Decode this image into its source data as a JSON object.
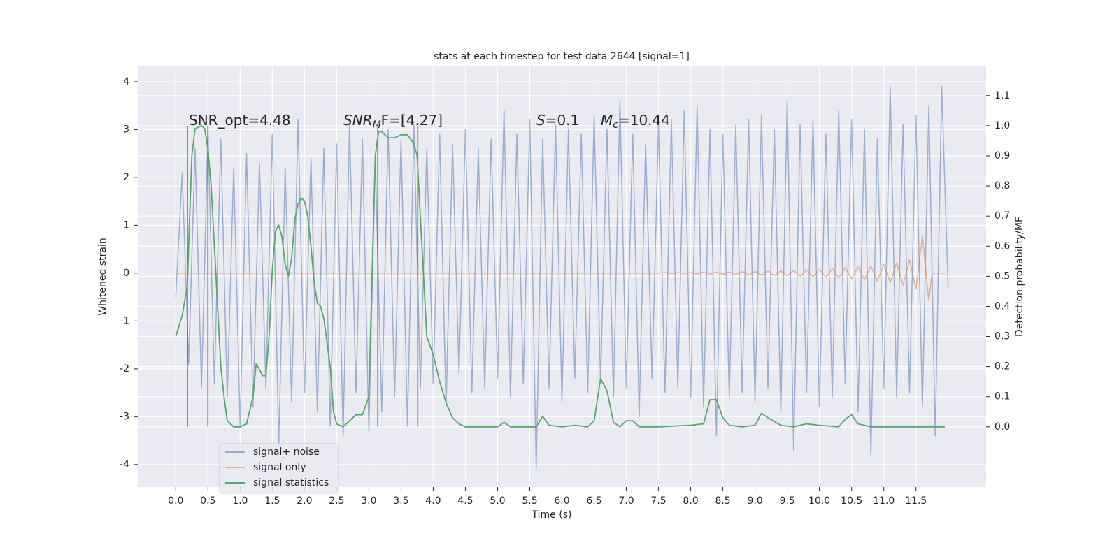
{
  "chart_data": {
    "type": "line",
    "title": "stats at each timestep for test data 2644 [signal=1]",
    "xlabel": "Time (s)",
    "ylabel": "Whitened strain",
    "y2label": "Detection probability/MF",
    "xlim": [
      -0.59,
      12.59
    ],
    "ylim": [
      -4.47,
      4.32
    ],
    "y2lim": [
      -0.2,
      1.197
    ],
    "xticks": [
      {
        "value": 0,
        "label": "0.0"
      },
      0.5,
      {
        "value": 1,
        "label": "1.0"
      },
      1.5,
      {
        "value": 2,
        "label": "2.0"
      },
      2.5,
      {
        "value": 3,
        "label": "3.0"
      },
      3.5,
      {
        "value": 4,
        "label": "4.0"
      },
      4.5,
      {
        "value": 5,
        "label": "5.0"
      },
      5.5,
      {
        "value": 6,
        "label": "6.0"
      },
      6.5,
      {
        "value": 7,
        "label": "7.0"
      },
      7.5,
      {
        "value": 8,
        "label": "8.0"
      },
      8.5,
      {
        "value": 9,
        "label": "9.0"
      },
      9.5,
      {
        "value": 10,
        "label": "10.0"
      },
      10.5,
      {
        "value": 11,
        "label": "11.0"
      },
      11.5
    ],
    "yticks": [
      -4,
      -3,
      -2,
      -1,
      0,
      1,
      2,
      3,
      4
    ],
    "y2ticks": [
      {
        "value": 0,
        "label": "0.0"
      },
      0.1,
      0.2,
      0.3,
      0.4,
      0.5,
      0.6,
      0.7,
      0.8,
      0.9,
      {
        "value": 1,
        "label": "1.0"
      },
      1.1
    ],
    "grid": true,
    "legend": "lower left",
    "vlines": [
      0.18,
      0.5,
      3.14,
      3.76
    ],
    "vline_color": "#555555",
    "annotations": [
      [
        {
          "text": "SNR_opt=4.48"
        }
      ],
      [
        {
          "text": "SNR",
          "style": "italic"
        },
        {
          "text": "M",
          "style": "sub"
        },
        {
          "text": "F=[4.27]"
        }
      ],
      [
        {
          "text": "S",
          "style": "italic"
        },
        {
          "text": "=0.1"
        }
      ],
      [
        {
          "text": "M",
          "style": "italic"
        },
        {
          "text": "c",
          "style": "sub"
        },
        {
          "text": "=10.44"
        }
      ]
    ],
    "series": [
      {
        "name": "signal+ noise",
        "color": "#4c72b0",
        "alpha": 0.5,
        "x": [
          0,
          0.1,
          0.2,
          0.3,
          0.4,
          0.5,
          0.6,
          0.7,
          0.8,
          0.9,
          1.0,
          1.1,
          1.2,
          1.3,
          1.4,
          1.5,
          1.6,
          1.7,
          1.8,
          1.9,
          2.0,
          2.1,
          2.2,
          2.3,
          2.4,
          2.5,
          2.6,
          2.7,
          2.8,
          2.9,
          3.0,
          3.1,
          3.2,
          3.3,
          3.4,
          3.5,
          3.6,
          3.7,
          3.8,
          3.9,
          4.0,
          4.1,
          4.2,
          4.3,
          4.4,
          4.5,
          4.6,
          4.7,
          4.8,
          4.9,
          5.0,
          5.1,
          5.2,
          5.3,
          5.4,
          5.5,
          5.6,
          5.7,
          5.8,
          5.9,
          6.0,
          6.1,
          6.2,
          6.3,
          6.4,
          6.5,
          6.6,
          6.7,
          6.8,
          6.9,
          7.0,
          7.1,
          7.2,
          7.3,
          7.4,
          7.5,
          7.6,
          7.7,
          7.8,
          7.9,
          8.0,
          8.1,
          8.2,
          8.3,
          8.4,
          8.5,
          8.6,
          8.7,
          8.8,
          8.9,
          9.0,
          9.1,
          9.2,
          9.3,
          9.4,
          9.5,
          9.6,
          9.7,
          9.8,
          9.9,
          10.0,
          10.1,
          10.2,
          10.3,
          10.4,
          10.5,
          10.6,
          10.7,
          10.8,
          10.9,
          11.0,
          11.1,
          11.2,
          11.3,
          11.4,
          11.5,
          11.6,
          11.7,
          11.8,
          11.9,
          12.0
        ],
        "values": [
          -0.5,
          2.1,
          -1.9,
          2.6,
          -2.4,
          3.0,
          -2.3,
          2.8,
          -2.6,
          2.2,
          -3.2,
          2.5,
          -2.8,
          2.3,
          -2.4,
          2.9,
          -3.6,
          2.2,
          -2.7,
          3.2,
          -2.5,
          2.4,
          -2.9,
          2.6,
          -3.2,
          2.7,
          -3.4,
          3.1,
          -2.5,
          2.8,
          -3.3,
          2.4,
          -2.9,
          3.0,
          -2.6,
          2.8,
          -3.2,
          3.1,
          -2.4,
          2.6,
          -2.3,
          2.9,
          -2.8,
          2.7,
          -2.1,
          3.0,
          -2.5,
          2.6,
          -2.4,
          2.8,
          -2.2,
          3.4,
          -2.6,
          2.9,
          -2.3,
          3.2,
          -4.1,
          2.8,
          -2.4,
          3.1,
          -2.7,
          3.0,
          -2.2,
          2.9,
          -2.5,
          3.3,
          -2.3,
          3.0,
          -2.6,
          3.6,
          -2.4,
          2.9,
          -3.0,
          2.7,
          -2.2,
          3.1,
          -2.5,
          3.2,
          -2.4,
          3.4,
          -2.6,
          3.5,
          -2.8,
          3.0,
          -3.4,
          2.9,
          -2.6,
          3.1,
          -2.5,
          3.2,
          -2.7,
          3.3,
          -2.4,
          3.0,
          -2.9,
          3.6,
          -3.7,
          3.1,
          -2.5,
          3.2,
          -2.8,
          2.9,
          -2.6,
          3.4,
          -2.3,
          3.2,
          -2.9,
          3.0,
          -3.8,
          2.8,
          -2.4,
          3.9,
          -2.6,
          3.1,
          -2.5,
          3.3,
          -2.8,
          3.5,
          -3.4,
          3.9,
          -0.3
        ]
      },
      {
        "name": "signal only",
        "color": "#dd8452",
        "alpha": 0.6,
        "x": [
          0,
          7.5,
          7.6,
          7.7,
          7.8,
          7.9,
          8.0,
          8.1,
          8.2,
          8.3,
          8.4,
          8.5,
          8.6,
          8.7,
          8.8,
          8.9,
          9.0,
          9.1,
          9.2,
          9.3,
          9.4,
          9.5,
          9.6,
          9.7,
          9.8,
          9.9,
          10.0,
          10.1,
          10.2,
          10.3,
          10.4,
          10.5,
          10.6,
          10.7,
          10.8,
          10.9,
          11.0,
          11.1,
          11.2,
          11.3,
          11.4,
          11.5,
          11.6,
          11.7,
          11.75,
          11.95
        ],
        "values": [
          0,
          0,
          0.01,
          -0.01,
          0.012,
          -0.012,
          0.015,
          -0.015,
          0.018,
          -0.018,
          0.02,
          -0.022,
          0.025,
          -0.027,
          0.03,
          -0.033,
          0.036,
          -0.04,
          0.043,
          -0.047,
          0.05,
          -0.055,
          0.06,
          -0.065,
          0.07,
          -0.075,
          0.08,
          -0.087,
          0.095,
          -0.1,
          0.11,
          -0.12,
          0.13,
          -0.14,
          0.15,
          -0.165,
          0.18,
          -0.2,
          0.22,
          -0.25,
          0.28,
          -0.33,
          0.78,
          -0.58,
          0,
          0
        ]
      },
      {
        "name": "signal statistics",
        "color": "#55a868",
        "axis": "y2",
        "x": [
          0,
          0.1,
          0.18,
          0.2,
          0.25,
          0.3,
          0.4,
          0.45,
          0.5,
          0.55,
          0.6,
          0.65,
          0.7,
          0.75,
          0.8,
          0.9,
          1.0,
          1.1,
          1.2,
          1.25,
          1.3,
          1.35,
          1.4,
          1.45,
          1.5,
          1.55,
          1.6,
          1.65,
          1.7,
          1.75,
          1.8,
          1.85,
          1.9,
          1.95,
          2.0,
          2.05,
          2.1,
          2.15,
          2.2,
          2.25,
          2.3,
          2.4,
          2.45,
          2.5,
          2.6,
          2.7,
          2.8,
          2.9,
          3.0,
          3.05,
          3.1,
          3.15,
          3.2,
          3.3,
          3.4,
          3.5,
          3.6,
          3.7,
          3.75,
          3.8,
          3.85,
          3.9,
          4.0,
          4.1,
          4.2,
          4.3,
          4.4,
          4.5,
          5.0,
          5.1,
          5.2,
          5.6,
          5.7,
          5.8,
          6.0,
          6.2,
          6.4,
          6.5,
          6.6,
          6.7,
          6.8,
          6.9,
          7.0,
          7.1,
          7.2,
          7.5,
          8.0,
          8.2,
          8.3,
          8.4,
          8.5,
          8.6,
          8.8,
          9.0,
          9.1,
          9.2,
          9.4,
          9.6,
          9.8,
          10.0,
          10.3,
          10.4,
          10.5,
          10.6,
          10.8,
          11.0,
          11.95
        ],
        "values": [
          0.3,
          0.37,
          0.47,
          0.6,
          0.9,
          0.99,
          1.0,
          0.99,
          0.92,
          0.8,
          0.6,
          0.4,
          0.2,
          0.1,
          0.02,
          0.0,
          0.0,
          0.01,
          0.1,
          0.21,
          0.19,
          0.17,
          0.17,
          0.3,
          0.52,
          0.65,
          0.67,
          0.63,
          0.54,
          0.5,
          0.56,
          0.69,
          0.74,
          0.76,
          0.75,
          0.7,
          0.6,
          0.48,
          0.41,
          0.4,
          0.36,
          0.2,
          0.05,
          0.01,
          0.0,
          0.02,
          0.04,
          0.04,
          0.1,
          0.5,
          0.9,
          0.98,
          0.98,
          0.96,
          0.96,
          0.97,
          0.97,
          0.94,
          0.9,
          0.7,
          0.5,
          0.3,
          0.24,
          0.15,
          0.08,
          0.03,
          0.01,
          0.0,
          0.0,
          0.015,
          0.0,
          0.0,
          0.035,
          0.005,
          0.0,
          0.005,
          0.0,
          0.02,
          0.16,
          0.12,
          0.015,
          0.0,
          0.02,
          0.02,
          0.0,
          0.0,
          0.005,
          0.01,
          0.09,
          0.09,
          0.03,
          0.005,
          0.0,
          0.005,
          0.045,
          0.03,
          0.005,
          0.0,
          0.01,
          0.005,
          0.0,
          0.025,
          0.04,
          0.01,
          0.0,
          0.0,
          0.0
        ]
      }
    ]
  }
}
